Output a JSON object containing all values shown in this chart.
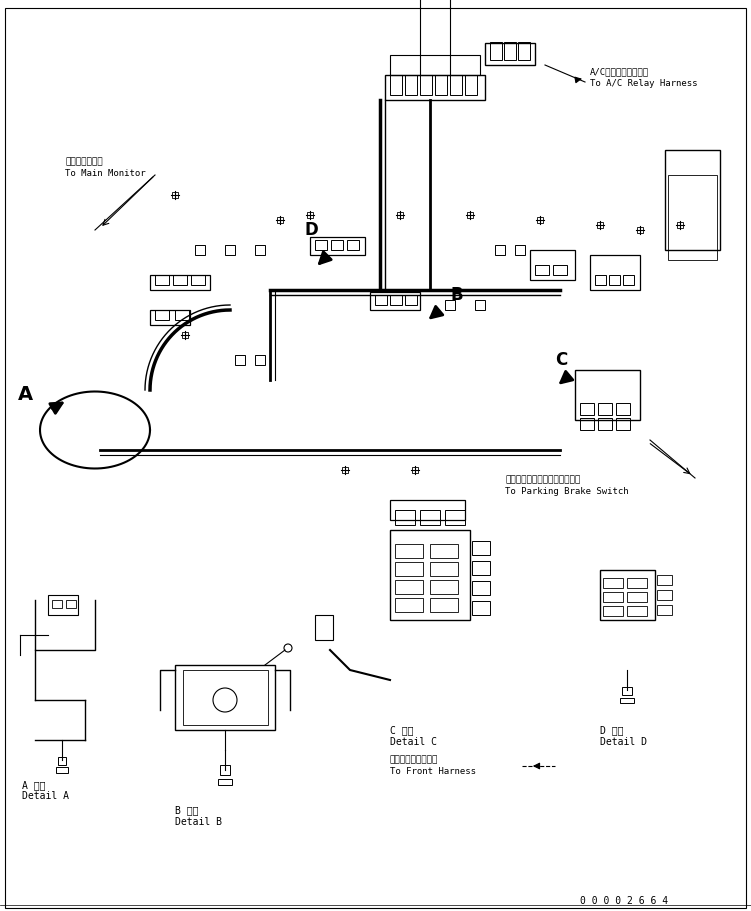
{
  "bg_color": "#ffffff",
  "line_color": "#000000",
  "fig_width": 7.51,
  "fig_height": 9.11,
  "dpi": 100,
  "labels": {
    "ac_relay_jp": "A/Cリレーハーネスへ",
    "ac_relay_en": "To A/C Relay Harness",
    "main_monitor_jp": "メインモニタへ",
    "main_monitor_en": "To Main Monitor",
    "parking_brake_jp": "パーキングブレーキスイッチへ",
    "parking_brake_en": "To Parking Brake Switch",
    "front_harness_jp": "フロントハーネスへ",
    "front_harness_en": "To Front Harness",
    "detail_a_jp": "A 詳細",
    "detail_a_en": "Detail A",
    "detail_b_jp": "B 詳細",
    "detail_b_en": "Detail B",
    "detail_c_jp": "C 詳細",
    "detail_c_en": "Detail C",
    "detail_d_jp": "D 詳細",
    "detail_d_en": "Detail D",
    "part_a": "A",
    "part_b": "B",
    "part_c": "C",
    "part_d": "D",
    "part_no": "0 0 0 0 2 6 6 4"
  },
  "font_sizes": {
    "label_jp": 6.5,
    "label_en": 6.5,
    "part_letter": 10,
    "part_no": 7,
    "detail_jp": 7,
    "detail_en": 7
  }
}
